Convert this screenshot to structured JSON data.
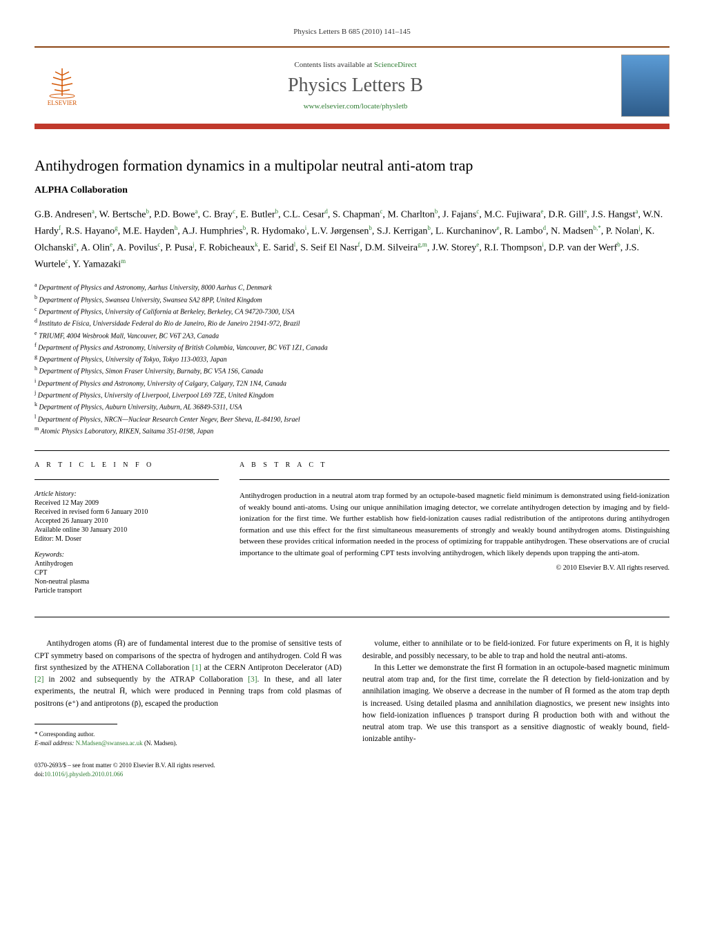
{
  "header": {
    "citation": "Physics Letters B 685 (2010) 141–145",
    "contents_text": "Contents lists available at ",
    "contents_link": "ScienceDirect",
    "journal_name": "Physics Letters B",
    "journal_url": "www.elsevier.com/locate/physletb",
    "publisher_name": "ELSEVIER"
  },
  "article": {
    "title": "Antihydrogen formation dynamics in a multipolar neutral anti-atom trap",
    "collaboration": "ALPHA Collaboration",
    "authors_html": "G.B. Andresen<sup>a</sup>, W. Bertsche<sup>b</sup>, P.D. Bowe<sup>a</sup>, C. Bray<sup>c</sup>, E. Butler<sup>b</sup>, C.L. Cesar<sup>d</sup>, S. Chapman<sup>c</sup>, M. Charlton<sup>b</sup>, J. Fajans<sup>c</sup>, M.C. Fujiwara<sup>e</sup>, D.R. Gill<sup>e</sup>, J.S. Hangst<sup>a</sup>, W.N. Hardy<sup>f</sup>, R.S. Hayano<sup>g</sup>, M.E. Hayden<sup>h</sup>, A.J. Humphries<sup>b</sup>, R. Hydomako<sup>i</sup>, L.V. Jørgensen<sup>b</sup>, S.J. Kerrigan<sup>b</sup>, L. Kurchaninov<sup>e</sup>, R. Lambo<sup>d</sup>, N. Madsen<sup>b,*</sup>, P. Nolan<sup>j</sup>, K. Olchanski<sup>e</sup>, A. Olin<sup>e</sup>, A. Povilus<sup>c</sup>, P. Pusa<sup>j</sup>, F. Robicheaux<sup>k</sup>, E. Sarid<sup>l</sup>, S. Seif El Nasr<sup>f</sup>, D.M. Silveira<sup>g,m</sup>, J.W. Storey<sup>e</sup>, R.I. Thompson<sup>i</sup>, D.P. van der Werf<sup>b</sup>, J.S. Wurtele<sup>c</sup>, Y. Yamazaki<sup>m</sup>",
    "affiliations": [
      {
        "sup": "a",
        "text": "Department of Physics and Astronomy, Aarhus University, 8000 Aarhus C, Denmark"
      },
      {
        "sup": "b",
        "text": "Department of Physics, Swansea University, Swansea SA2 8PP, United Kingdom"
      },
      {
        "sup": "c",
        "text": "Department of Physics, University of California at Berkeley, Berkeley, CA 94720-7300, USA"
      },
      {
        "sup": "d",
        "text": "Instituto de Física, Universidade Federal do Rio de Janeiro, Rio de Janeiro 21941-972, Brazil"
      },
      {
        "sup": "e",
        "text": "TRIUMF, 4004 Wesbrook Mall, Vancouver, BC V6T 2A3, Canada"
      },
      {
        "sup": "f",
        "text": "Department of Physics and Astronomy, University of British Columbia, Vancouver, BC V6T 1Z1, Canada"
      },
      {
        "sup": "g",
        "text": "Department of Physics, University of Tokyo, Tokyo 113-0033, Japan"
      },
      {
        "sup": "h",
        "text": "Department of Physics, Simon Fraser University, Burnaby, BC V5A 1S6, Canada"
      },
      {
        "sup": "i",
        "text": "Department of Physics and Astronomy, University of Calgary, Calgary, T2N 1N4, Canada"
      },
      {
        "sup": "j",
        "text": "Department of Physics, University of Liverpool, Liverpool L69 7ZE, United Kingdom"
      },
      {
        "sup": "k",
        "text": "Department of Physics, Auburn University, Auburn, AL 36849-5311, USA"
      },
      {
        "sup": "l",
        "text": "Department of Physics, NRCN—Nuclear Research Center Negev, Beer Sheva, IL-84190, Israel"
      },
      {
        "sup": "m",
        "text": "Atomic Physics Laboratory, RIKEN, Saitama 351-0198, Japan"
      }
    ]
  },
  "info": {
    "heading": "A R T I C L E   I N F O",
    "history_label": "Article history:",
    "history": [
      "Received 12 May 2009",
      "Received in revised form 6 January 2010",
      "Accepted 26 January 2010",
      "Available online 30 January 2010",
      "Editor: M. Doser"
    ],
    "keywords_label": "Keywords:",
    "keywords": [
      "Antihydrogen",
      "CPT",
      "Non-neutral plasma",
      "Particle transport"
    ]
  },
  "abstract": {
    "heading": "A B S T R A C T",
    "text": "Antihydrogen production in a neutral atom trap formed by an octupole-based magnetic field minimum is demonstrated using field-ionization of weakly bound anti-atoms. Using our unique annihilation imaging detector, we correlate antihydrogen detection by imaging and by field-ionization for the first time. We further establish how field-ionization causes radial redistribution of the antiprotons during antihydrogen formation and use this effect for the first simultaneous measurements of strongly and weakly bound antihydrogen atoms. Distinguishing between these provides critical information needed in the process of optimizing for trappable antihydrogen. These observations are of crucial importance to the ultimate goal of performing CPT tests involving antihydrogen, which likely depends upon trapping the anti-atom.",
    "copyright": "© 2010 Elsevier B.V. All rights reserved."
  },
  "body": {
    "col1_p1": "Antihydrogen atoms (H̄) are of fundamental interest due to the promise of sensitive tests of CPT symmetry based on comparisons of the spectra of hydrogen and antihydrogen. Cold H̄ was first synthesized by the ATHENA Collaboration [1] at the CERN Antiproton Decelerator (AD) [2] in 2002 and subsequently by the ATRAP Collaboration [3]. In these, and all later experiments, the neutral H̄, which were produced in Penning traps from cold plasmas of positrons (e⁺) and antiprotons (p̄), escaped the production",
    "col2_p1": "volume, either to annihilate or to be field-ionized. For future experiments on H̄, it is highly desirable, and possibly necessary, to be able to trap and hold the neutral anti-atoms.",
    "col2_p2": "In this Letter we demonstrate the first H̄ formation in an octupole-based magnetic minimum neutral atom trap and, for the first time, correlate the H̄ detection by field-ionization and by annihilation imaging. We observe a decrease in the number of H̄ formed as the atom trap depth is increased. Using detailed plasma and annihilation diagnostics, we present new insights into how field-ionization influences p̄ transport during H̄ production both with and without the neutral atom trap. We use this transport as a sensitive diagnostic of weakly bound, field-ionizable antihy-"
  },
  "footnote": {
    "corresponding": "* Corresponding author.",
    "email_label": "E-mail address: ",
    "email": "N.Madsen@swansea.ac.uk",
    "email_name": " (N. Madsen)."
  },
  "footer": {
    "issn": "0370-2693/$ – see front matter © 2010 Elsevier B.V. All rights reserved.",
    "doi_label": "doi:",
    "doi": "10.1016/j.physletb.2010.01.066"
  },
  "colors": {
    "link": "#2e7d32",
    "banner_bottom": "#c0392b",
    "banner_top": "#8b4513",
    "publisher": "#d35400"
  }
}
